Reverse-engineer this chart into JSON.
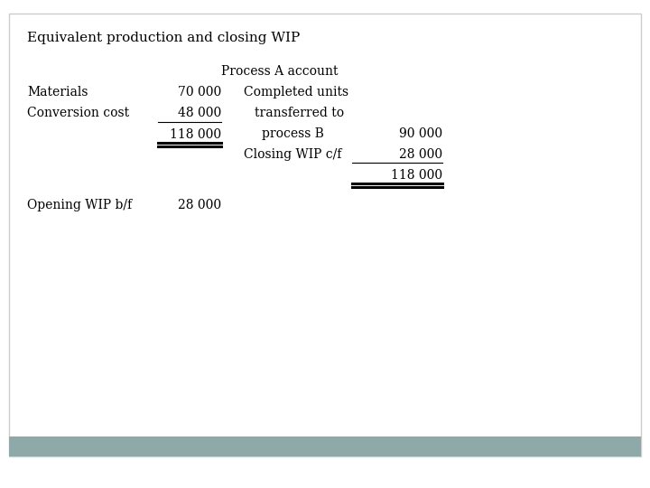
{
  "title": "Equivalent production and closing WIP",
  "subtitle": "Process A account",
  "bg_color": "#ffffff",
  "border_color": "#cccccc",
  "footer_color": "#8fa8a8",
  "left_labels": [
    "Materials",
    "Conversion cost"
  ],
  "left_values": [
    "70 000",
    "48 000"
  ],
  "left_total": "118 000",
  "left_subtotal_label": "Opening WIP b/f",
  "left_subtotal_value": "28 000",
  "right_label_line1": "Completed units",
  "right_label_line2": "transferred to",
  "right_label_line3": "process B",
  "right_label_closing": "Closing WIP c/f",
  "right_value_completed": "90 000",
  "right_value_closing": "28 000",
  "right_total": "118 000",
  "font_size": 10,
  "title_font_size": 11
}
